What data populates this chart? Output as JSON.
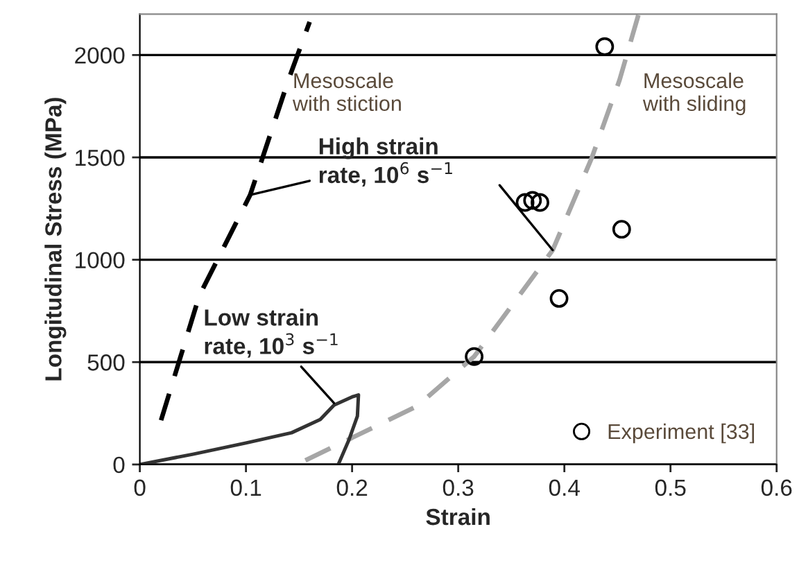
{
  "chart_data": {
    "type": "line",
    "xlabel": "Strain",
    "ylabel": "Longitudinal Stress (MPa)",
    "xlim": [
      0,
      0.6
    ],
    "ylim": [
      0,
      2200
    ],
    "xticks": [
      0,
      0.1,
      0.2,
      0.3,
      0.4,
      0.5,
      0.6
    ],
    "yticks": [
      0,
      500,
      1000,
      1500,
      2000
    ],
    "grid": "y",
    "legend": "bottom right",
    "series": [
      {
        "name": "Mesoscale\nwith stiction",
        "color": "#000000",
        "line_style": "dashed",
        "marker": "none",
        "x": [
          0.02,
          0.056,
          0.104,
          0.14,
          0.16
        ],
        "values": [
          216,
          824,
          1317,
          1878,
          2162
        ]
      },
      {
        "name": "Mesoscale\nwith sliding",
        "color": "#a6a6a6",
        "line_style": "dashed",
        "marker": "none",
        "x": [
          0.156,
          0.261,
          0.315,
          0.389,
          0.426,
          0.452,
          0.47
        ],
        "values": [
          20,
          284,
          527,
          1047,
          1500,
          1878,
          2200
        ]
      },
      {
        "color": "#333333",
        "line_style": "solid",
        "marker": "none",
        "x": [
          0,
          0.05,
          0.1,
          0.143,
          0.17,
          0.183,
          0.2,
          0.206,
          0.205,
          0.197,
          0.187
        ],
        "values": [
          0,
          50,
          105,
          155,
          220,
          290,
          330,
          340,
          236,
          120,
          0
        ]
      },
      {
        "name": "Experiment [33]",
        "type": "scatter",
        "color": "#000000",
        "marker": "circle",
        "x": [
          0.438,
          0.363,
          0.37,
          0.377,
          0.454,
          0.395,
          0.315
        ],
        "values": [
          2041,
          1280,
          1290,
          1280,
          1149,
          811,
          527
        ]
      }
    ],
    "annotations": [
      {
        "text": "High strain\nrate, 10$^{6}$ s$^{−1}$",
        "x": 0.104,
        "y": 1317
      },
      {
        "text": "Low strain\nrate, 10$^{3}$ s$^{−1}$",
        "x": 0.183,
        "y": 300
      }
    ]
  }
}
